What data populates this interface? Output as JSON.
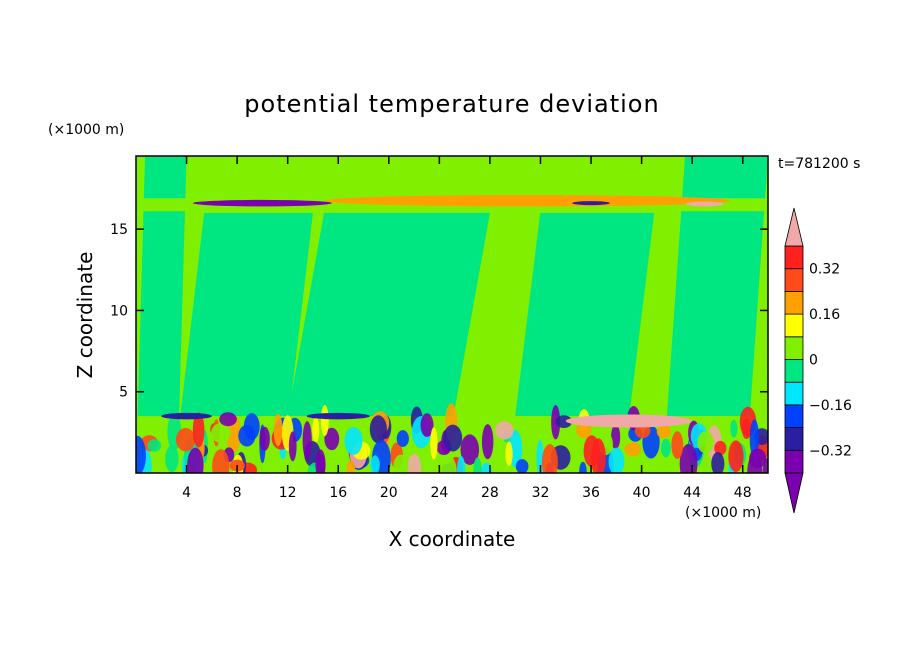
{
  "chart_data": {
    "type": "heatmap",
    "title": "potential temperature deviation",
    "xlabel": "X coordinate",
    "ylabel": "Z coordinate",
    "x_units": "(×1000 m)",
    "y_units": "(×1000 m)",
    "time_label": "t=781200 s",
    "xlim": [
      0,
      50
    ],
    "ylim": [
      0,
      19.5
    ],
    "xticks": [
      4,
      8,
      12,
      16,
      20,
      24,
      28,
      32,
      36,
      40,
      44,
      48
    ],
    "yticks": [
      5,
      10,
      15
    ],
    "colorbar": {
      "levels": [
        -0.4,
        -0.32,
        -0.24,
        -0.16,
        -0.08,
        0,
        0.08,
        0.16,
        0.24,
        0.32,
        0.4
      ],
      "labels": [
        "0.32",
        "0.16",
        "0",
        "−0.16",
        "−0.32"
      ],
      "label_values": [
        0.32,
        0.16,
        0,
        -0.16,
        -0.32
      ],
      "colors_low_to_high": [
        "#7a00b0",
        "#2c1ea0",
        "#0040ff",
        "#00e6ff",
        "#00e680",
        "#80f000",
        "#ffff00",
        "#ffa000",
        "#ff4a1a",
        "#ff2020"
      ],
      "under_color": "#7a00b0",
      "over_color": "#f0a8a8"
    },
    "background_color": "#80f000",
    "features": [
      {
        "kind": "band",
        "x": [
          0,
          50
        ],
        "z": [
          16.1,
          16.9
        ],
        "value": 0.04
      },
      {
        "kind": "band",
        "x": [
          0,
          50
        ],
        "z": [
          0,
          3.5
        ],
        "value": 0.0
      },
      {
        "kind": "blob",
        "x": [
          4.5,
          15.5
        ],
        "z": [
          16.4,
          16.8
        ],
        "value": -0.36
      },
      {
        "kind": "blob",
        "x": [
          15,
          47
        ],
        "z": [
          16.4,
          17.1
        ],
        "value": 0.2
      },
      {
        "kind": "blob",
        "x": [
          34.5,
          37.5
        ],
        "z": [
          16.5,
          16.7
        ],
        "value": -0.28
      },
      {
        "kind": "blob",
        "x": [
          43.5,
          46.5
        ],
        "z": [
          16.4,
          16.7
        ],
        "value": 0.45
      },
      {
        "kind": "region",
        "x": [
          0,
          4
        ],
        "z": [
          0,
          19.5
        ],
        "value": -0.04
      },
      {
        "kind": "region",
        "x": [
          3.5,
          14
        ],
        "z": [
          3.5,
          16
        ],
        "value": -0.04
      },
      {
        "kind": "region",
        "x": [
          12,
          28
        ],
        "z": [
          3.5,
          16
        ],
        "value": -0.04
      },
      {
        "kind": "region",
        "x": [
          30,
          41
        ],
        "z": [
          3.5,
          16
        ],
        "value": -0.04
      },
      {
        "kind": "region",
        "x": [
          42,
          50
        ],
        "z": [
          3.5,
          19.5
        ],
        "value": -0.04
      },
      {
        "kind": "blob",
        "x": [
          13.5,
          18.5
        ],
        "z": [
          3.3,
          3.7
        ],
        "value": -0.3
      },
      {
        "kind": "blob",
        "x": [
          2.0,
          6.0
        ],
        "z": [
          3.3,
          3.7
        ],
        "value": -0.3
      },
      {
        "kind": "blob",
        "x": [
          34,
          44
        ],
        "z": [
          2.8,
          3.6
        ],
        "value": 0.45
      }
    ]
  }
}
